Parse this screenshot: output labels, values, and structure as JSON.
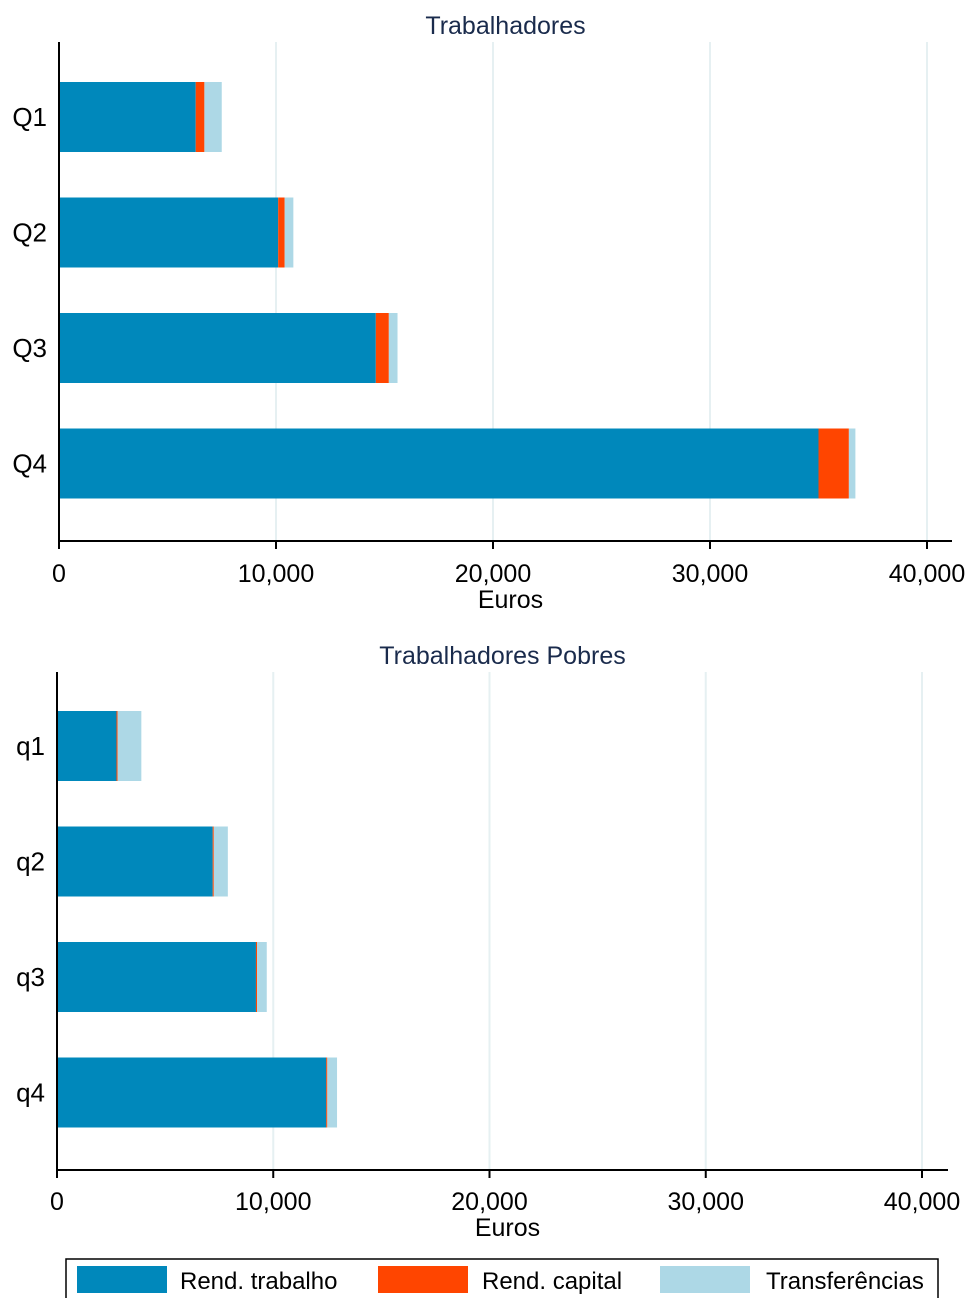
{
  "colors": {
    "rend_trabalho": "#0088bb",
    "rend_capital": "#ff4500",
    "transferencias": "#add8e6",
    "grid": "#e6f0f2",
    "axis": "#000000",
    "title": "#1a2b4c"
  },
  "legend": {
    "items": [
      {
        "label": "Rend. trabalho",
        "color": "#0088bb"
      },
      {
        "label": "Rend. capital",
        "color": "#ff4500"
      },
      {
        "label": "Transferências",
        "color": "#add8e6"
      }
    ]
  },
  "chart_data": [
    {
      "type": "bar",
      "orientation": "horizontal",
      "stacked": true,
      "title": "Trabalhadores",
      "xlabel": "Euros",
      "ylabel": "",
      "xlim": [
        0,
        41000
      ],
      "xticks": [
        0,
        10000,
        20000,
        30000,
        40000
      ],
      "xtick_labels": [
        "0",
        "10,000",
        "20,000",
        "30,000",
        "40,000"
      ],
      "grid": true,
      "categories": [
        "Q1",
        "Q2",
        "Q3",
        "Q4"
      ],
      "series": [
        {
          "name": "Rend. trabalho",
          "values": [
            6300,
            10100,
            14600,
            35000
          ]
        },
        {
          "name": "Rend. capital",
          "values": [
            400,
            300,
            600,
            1400
          ]
        },
        {
          "name": "Transferências",
          "values": [
            800,
            400,
            400,
            300
          ]
        }
      ]
    },
    {
      "type": "bar",
      "orientation": "horizontal",
      "stacked": true,
      "title": "Trabalhadores Pobres",
      "xlabel": "Euros",
      "ylabel": "",
      "xlim": [
        0,
        41000
      ],
      "xticks": [
        0,
        10000,
        20000,
        30000,
        40000
      ],
      "xtick_labels": [
        "0",
        "10,000",
        "20,000",
        "30,000",
        "40,000"
      ],
      "grid": true,
      "categories": [
        "q1",
        "q2",
        "q3",
        "q4"
      ],
      "series": [
        {
          "name": "Rend. trabalho",
          "values": [
            2750,
            7200,
            9200,
            12450
          ]
        },
        {
          "name": "Rend. capital",
          "values": [
            50,
            50,
            50,
            50
          ]
        },
        {
          "name": "Transferências",
          "values": [
            1100,
            650,
            450,
            450
          ]
        }
      ]
    }
  ]
}
